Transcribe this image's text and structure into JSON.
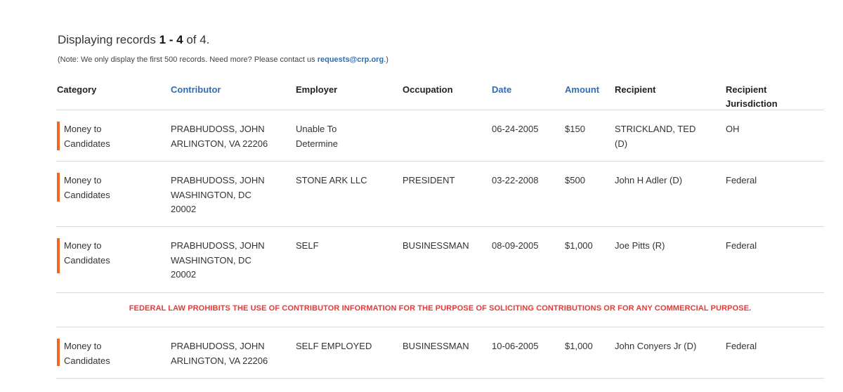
{
  "summary": {
    "prefix": "Displaying records ",
    "range": "1 - 4",
    "of_text": " of 4."
  },
  "note": {
    "text": "(Note: We only display the first 500 records. Need more? Please contact us ",
    "email": "requests@crp.org",
    "suffix": ".)"
  },
  "table": {
    "headers": {
      "category": "Category",
      "contributor": "Contributor",
      "employer": "Employer",
      "occupation": "Occupation",
      "date": "Date",
      "amount": "Amount",
      "recipient": "Recipient",
      "jurisdiction_line1": "Recipient",
      "jurisdiction_line2": "Jurisdiction"
    },
    "rows": [
      {
        "category_line1": "Money to",
        "category_line2": "Candidates",
        "contributor_line1": "PRABHUDOSS, JOHN",
        "contributor_line2": "ARLINGTON, VA 22206",
        "contributor_line3": "",
        "employer_line1": "Unable To",
        "employer_line2": "Determine",
        "occupation": "",
        "date": "06-24-2005",
        "amount": "$150",
        "recipient_line1": "STRICKLAND, TED",
        "recipient_line2": "(D)",
        "jurisdiction": "OH"
      },
      {
        "category_line1": "Money to",
        "category_line2": "Candidates",
        "contributor_line1": "PRABHUDOSS, JOHN",
        "contributor_line2": "WASHINGTON, DC",
        "contributor_line3": "20002",
        "employer_line1": "STONE ARK LLC",
        "employer_line2": "",
        "occupation": "PRESIDENT",
        "date": "03-22-2008",
        "amount": "$500",
        "recipient_line1": "John H Adler (D)",
        "recipient_line2": "",
        "jurisdiction": "Federal"
      },
      {
        "category_line1": "Money to",
        "category_line2": "Candidates",
        "contributor_line1": "PRABHUDOSS, JOHN",
        "contributor_line2": "WASHINGTON, DC",
        "contributor_line3": "20002",
        "employer_line1": "SELF",
        "employer_line2": "",
        "occupation": "BUSINESSMAN",
        "date": "08-09-2005",
        "amount": "$1,000",
        "recipient_line1": "Joe Pitts (R)",
        "recipient_line2": "",
        "jurisdiction": "Federal"
      },
      {
        "category_line1": "Money to",
        "category_line2": "Candidates",
        "contributor_line1": "PRABHUDOSS, JOHN",
        "contributor_line2": "ARLINGTON, VA 22206",
        "contributor_line3": "",
        "employer_line1": "SELF EMPLOYED",
        "employer_line2": "",
        "occupation": "BUSINESSMAN",
        "date": "10-06-2005",
        "amount": "$1,000",
        "recipient_line1": "John Conyers Jr (D)",
        "recipient_line2": "",
        "jurisdiction": "Federal"
      }
    ],
    "warning": "FEDERAL LAW PROHIBITS THE USE OF CONTRIBUTOR INFORMATION FOR THE PURPOSE OF SOLICITING CONTRIBUTIONS OR FOR ANY COMMERCIAL PURPOSE."
  },
  "colors": {
    "link": "#2f6db5",
    "category_bar": "#f26522",
    "warning": "#e53935",
    "divider": "#d9d9d9"
  }
}
